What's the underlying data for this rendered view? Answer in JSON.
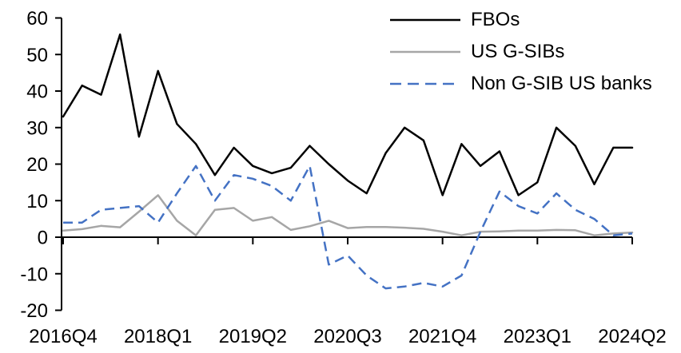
{
  "chart_data": {
    "type": "line",
    "categories": [
      "2016Q4",
      "2017Q1",
      "2017Q2",
      "2017Q3",
      "2017Q4",
      "2018Q1",
      "2018Q2",
      "2018Q3",
      "2018Q4",
      "2019Q1",
      "2019Q2",
      "2019Q3",
      "2019Q4",
      "2020Q1",
      "2020Q2",
      "2020Q3",
      "2020Q4",
      "2021Q1",
      "2021Q2",
      "2021Q3",
      "2021Q4",
      "2022Q1",
      "2022Q2",
      "2022Q3",
      "2022Q4",
      "2023Q1",
      "2023Q2",
      "2023Q3",
      "2023Q4",
      "2024Q1",
      "2024Q2"
    ],
    "series": [
      {
        "name": "FBOs",
        "color": "#000000",
        "style": "solid",
        "values": [
          33,
          41.5,
          39,
          55.5,
          27.5,
          45.5,
          31,
          25.5,
          17,
          24.5,
          19.5,
          17.5,
          19,
          25,
          20,
          15.5,
          12,
          23,
          30,
          26.5,
          11.5,
          25.5,
          19.5,
          23.5,
          11.5,
          15,
          30,
          25,
          14.5,
          24.5,
          24.5
        ]
      },
      {
        "name": "US G-SIBs",
        "color": "#a6a6a6",
        "style": "solid",
        "values": [
          1.8,
          2.2,
          3.1,
          2.7,
          7,
          11.5,
          4.5,
          0.5,
          7.5,
          8,
          4.5,
          5.5,
          2,
          3,
          4.5,
          2.5,
          2.8,
          2.8,
          2.6,
          2.3,
          1.5,
          0.5,
          1.5,
          1.6,
          1.8,
          1.8,
          2,
          1.9,
          0.5,
          1,
          1.3
        ]
      },
      {
        "name": "Non G-SIB US banks",
        "color": "#4472c4",
        "style": "dashed",
        "values": [
          4,
          4,
          7.5,
          8,
          8.5,
          4,
          12,
          19.5,
          10,
          17,
          16,
          14,
          10,
          19.5,
          -7.5,
          -5,
          -10.5,
          -14,
          -13.5,
          -12.5,
          -13.5,
          -10.5,
          1.5,
          12.5,
          8.5,
          6.5,
          12,
          7.5,
          5,
          0.5,
          1
        ]
      }
    ],
    "ylim": [
      -20,
      60
    ],
    "ytick_step": 10,
    "ytick_labels": [
      "60",
      "50",
      "40",
      "30",
      "20",
      "10",
      "0",
      "-10",
      "-20"
    ],
    "xtick_indices": [
      0,
      5,
      10,
      15,
      20,
      25,
      30
    ],
    "xtick_labels": [
      "2016Q4",
      "2018Q1",
      "2019Q2",
      "2020Q3",
      "2021Q4",
      "2023Q1",
      "2024Q2"
    ],
    "grid": "off",
    "legend_position": "top-right"
  }
}
